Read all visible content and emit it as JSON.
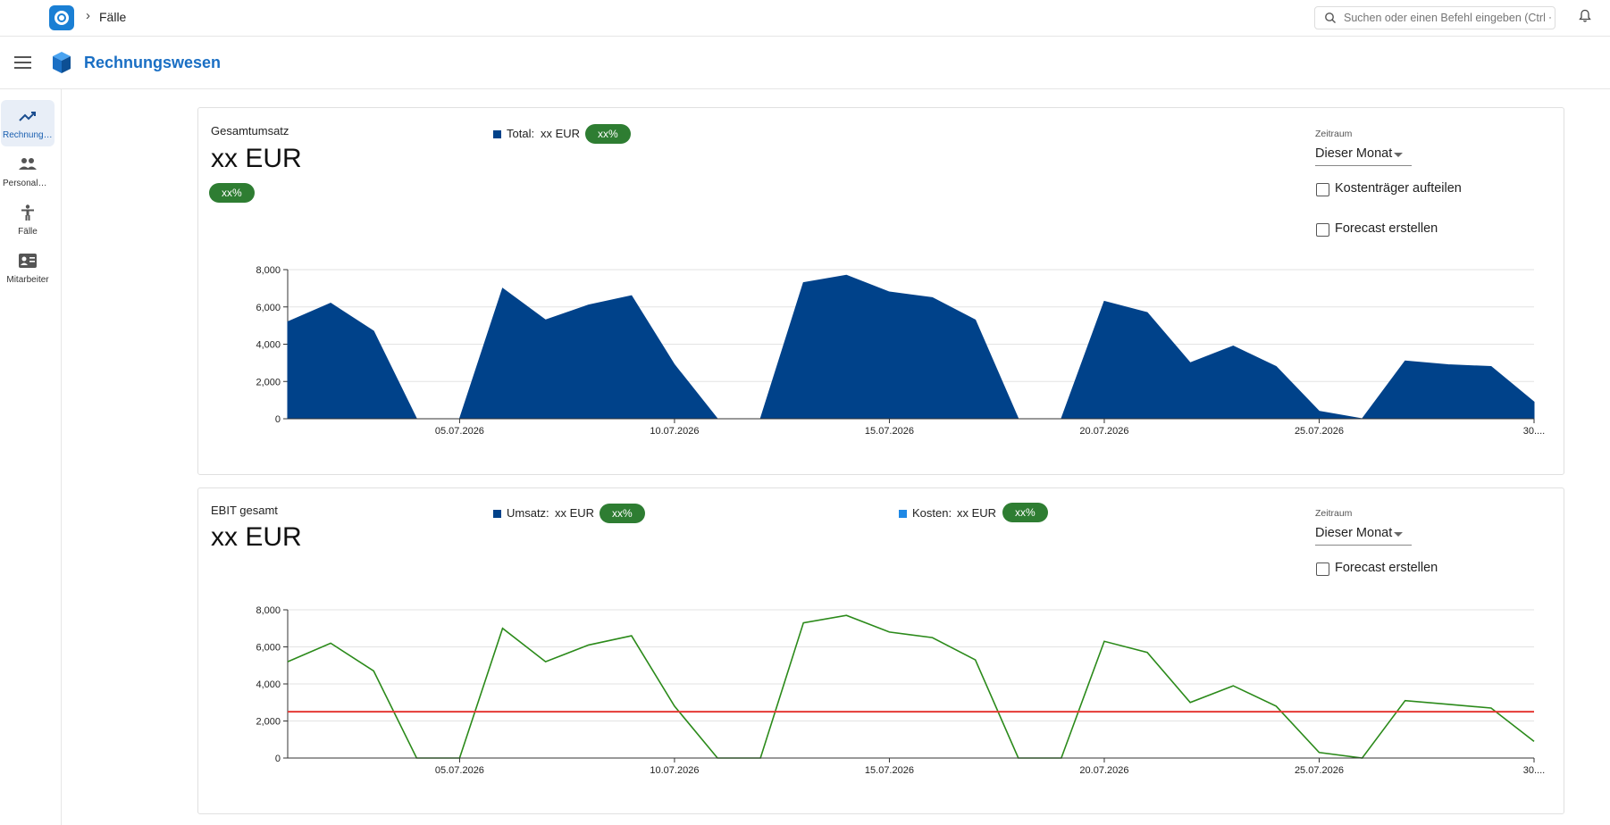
{
  "topbar": {
    "breadcrumb": "Fälle",
    "search_placeholder": "Suchen oder einen Befehl eingeben (Ctrl + G)"
  },
  "header": {
    "title": "Rechnungswesen"
  },
  "sidebar": {
    "items": [
      {
        "label": "Rechnungswesen",
        "icon": "trending-up-icon",
        "active": true
      },
      {
        "label": "Personalwesen",
        "icon": "people-icon",
        "active": false
      },
      {
        "label": "Fälle",
        "icon": "person-standing-icon",
        "active": false
      },
      {
        "label": "Mitarbeiter",
        "icon": "id-card-icon",
        "active": false
      }
    ]
  },
  "colors": {
    "accent": "#1a6fc4",
    "area": "#00428a",
    "pill": "#2e7d32",
    "line": "#2b8a1a",
    "threshold": "#e53935",
    "kosten": "#1e88e5"
  },
  "card1": {
    "title": "Gesamtumsatz",
    "value": "xx EUR",
    "pill": "xx%",
    "legend": {
      "label": "Total:",
      "value": "xx EUR",
      "pill": "xx%"
    },
    "zeitraum_label": "Zeitraum",
    "zeitraum_value": "Dieser Monat",
    "checkbox1": "Kostenträger aufteilen",
    "checkbox2": "Forecast erstellen"
  },
  "card2": {
    "title": "EBIT gesamt",
    "value": "xx EUR",
    "legend1": {
      "label": "Umsatz:",
      "value": "xx EUR",
      "pill": "xx%"
    },
    "legend2": {
      "label": "Kosten:",
      "value": "xx EUR",
      "pill": "xx%"
    },
    "zeitraum_label": "Zeitraum",
    "zeitraum_value": "Dieser Monat",
    "checkbox1": "Forecast erstellen"
  },
  "chart_data": [
    {
      "type": "area",
      "x": [
        "01.07.2026",
        "02.07.2026",
        "03.07.2026",
        "04.07.2026",
        "05.07.2026",
        "06.07.2026",
        "07.07.2026",
        "08.07.2026",
        "09.07.2026",
        "10.07.2026",
        "11.07.2026",
        "12.07.2026",
        "13.07.2026",
        "14.07.2026",
        "15.07.2026",
        "16.07.2026",
        "17.07.2026",
        "18.07.2026",
        "19.07.2026",
        "20.07.2026",
        "21.07.2026",
        "22.07.2026",
        "23.07.2026",
        "24.07.2026",
        "25.07.2026",
        "26.07.2026",
        "27.07.2026",
        "28.07.2026",
        "29.07.2026",
        "30.07.2026"
      ],
      "series": [
        {
          "values": [
            5200,
            6200,
            4700,
            0,
            0,
            7000,
            5300,
            6100,
            6600,
            2900,
            0,
            0,
            7300,
            7700,
            6800,
            6500,
            5300,
            0,
            0,
            6300,
            5700,
            3000,
            3900,
            2800,
            400,
            0,
            3100,
            2900,
            2800,
            900
          ]
        }
      ],
      "x_ticks": [
        "05.07.2026",
        "10.07.2026",
        "15.07.2026",
        "20.07.2026",
        "25.07.2026",
        "30...."
      ],
      "y_ticks": [
        "0",
        "2,000",
        "4,000",
        "6,000",
        "8,000"
      ],
      "ylim": [
        0,
        8000
      ],
      "grid": true
    },
    {
      "type": "line",
      "x": [
        "01.07.2026",
        "02.07.2026",
        "03.07.2026",
        "04.07.2026",
        "05.07.2026",
        "06.07.2026",
        "07.07.2026",
        "08.07.2026",
        "09.07.2026",
        "10.07.2026",
        "11.07.2026",
        "12.07.2026",
        "13.07.2026",
        "14.07.2026",
        "15.07.2026",
        "16.07.2026",
        "17.07.2026",
        "18.07.2026",
        "19.07.2026",
        "20.07.2026",
        "21.07.2026",
        "22.07.2026",
        "23.07.2026",
        "24.07.2026",
        "25.07.2026",
        "26.07.2026",
        "27.07.2026",
        "28.07.2026",
        "29.07.2026",
        "30.07.2026"
      ],
      "series": [
        {
          "values": [
            5200,
            6200,
            4700,
            0,
            0,
            7000,
            5200,
            6100,
            6600,
            2800,
            0,
            0,
            7300,
            7700,
            6800,
            6500,
            5300,
            0,
            0,
            6300,
            5700,
            3000,
            3900,
            2800,
            300,
            0,
            3100,
            2900,
            2700,
            900
          ]
        },
        {
          "values": [
            2500,
            2500,
            2500,
            2500,
            2500,
            2500,
            2500,
            2500,
            2500,
            2500,
            2500,
            2500,
            2500,
            2500,
            2500,
            2500,
            2500,
            2500,
            2500,
            2500,
            2500,
            2500,
            2500,
            2500,
            2500,
            2500,
            2500,
            2500,
            2500,
            2500
          ]
        }
      ],
      "x_ticks": [
        "05.07.2026",
        "10.07.2026",
        "15.07.2026",
        "20.07.2026",
        "25.07.2026",
        "30...."
      ],
      "y_ticks": [
        "0",
        "2,000",
        "4,000",
        "6,000",
        "8,000"
      ],
      "ylim": [
        0,
        8000
      ],
      "grid": true
    }
  ]
}
